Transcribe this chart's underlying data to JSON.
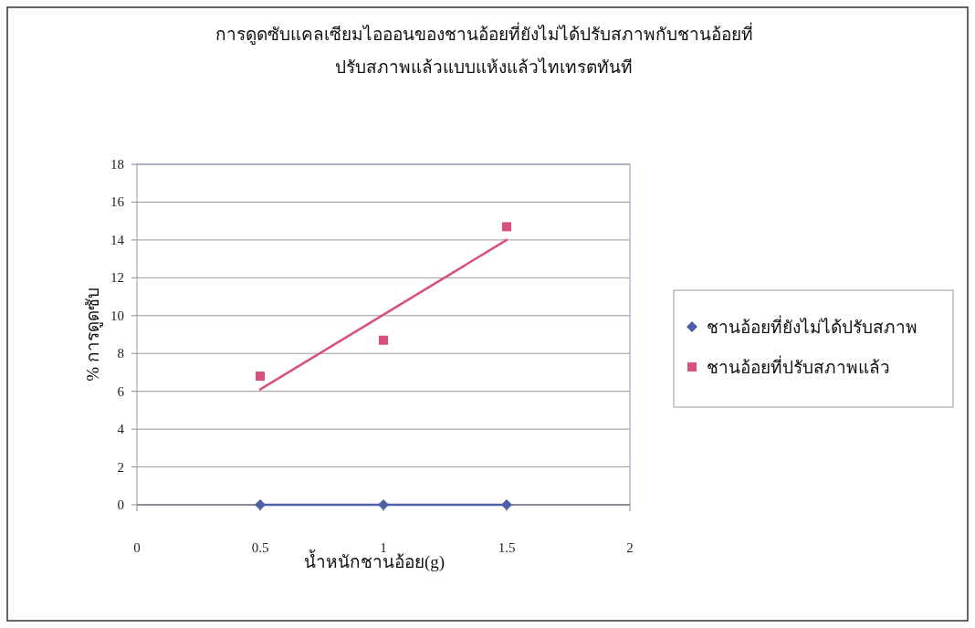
{
  "chart_data": {
    "type": "scatter",
    "title": "การดูดซับแคลเซียมไอออนของชานอ้อยที่ยังไม่ได้ปรับสภาพกับชานอ้อยที่ปรับสภาพแล้วแบบแห้งแล้วไทเทรตทันที",
    "xlabel": "น้ำหนักชานอ้อย(g)",
    "ylabel": "% การดูดซับ",
    "x": [
      0.5,
      1,
      1.5
    ],
    "series": [
      {
        "name": "ชานอ้อยที่ยังไม่ได้ปรับสภาพ",
        "type": "line",
        "color": "#4a60a8",
        "values": [
          0,
          0,
          0
        ],
        "marker": "diamond"
      },
      {
        "name": "ชานอ้อยที่ปรับสภาพแล้ว",
        "color": "#d9507a",
        "values": [
          6.8,
          8.7,
          14.7
        ],
        "marker": "square"
      },
      {
        "type": "line",
        "color": "#d9507a",
        "x": [
          0.5,
          1.5
        ],
        "values": [
          6.1,
          14.0
        ]
      }
    ],
    "xlim": [
      0,
      2
    ],
    "xticks": [
      0,
      0.5,
      1,
      1.5,
      2
    ],
    "ylim": [
      0,
      18
    ],
    "yticks": [
      0,
      2,
      4,
      6,
      8,
      10,
      12,
      14,
      16,
      18
    ],
    "grid": "y",
    "legend": "right"
  }
}
